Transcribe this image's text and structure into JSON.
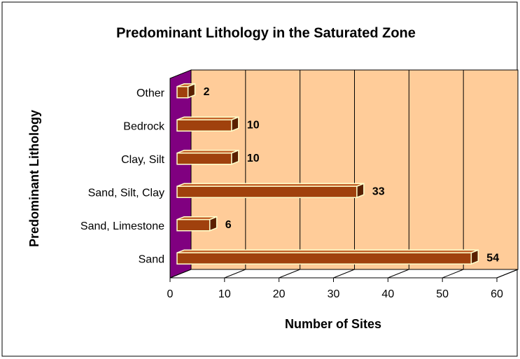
{
  "chart_data": {
    "type": "bar3d_horizontal",
    "title": "Predominant Lithology in the Saturated Zone",
    "xlabel": "Number of Sites",
    "ylabel": "Predominant Lithology",
    "categories": [
      "Sand",
      "Sand, Limestone",
      "Sand, Silt, Clay",
      "Clay, Silt",
      "Bedrock",
      "Other"
    ],
    "values": [
      54,
      6,
      33,
      10,
      10,
      2
    ],
    "color": "#a0410d",
    "wall_color": "#ffcc99",
    "side_wall_color": "#800080",
    "xlim": [
      0,
      60
    ],
    "xticks": [
      0,
      10,
      20,
      30,
      40,
      50,
      60
    ],
    "grid": true
  }
}
